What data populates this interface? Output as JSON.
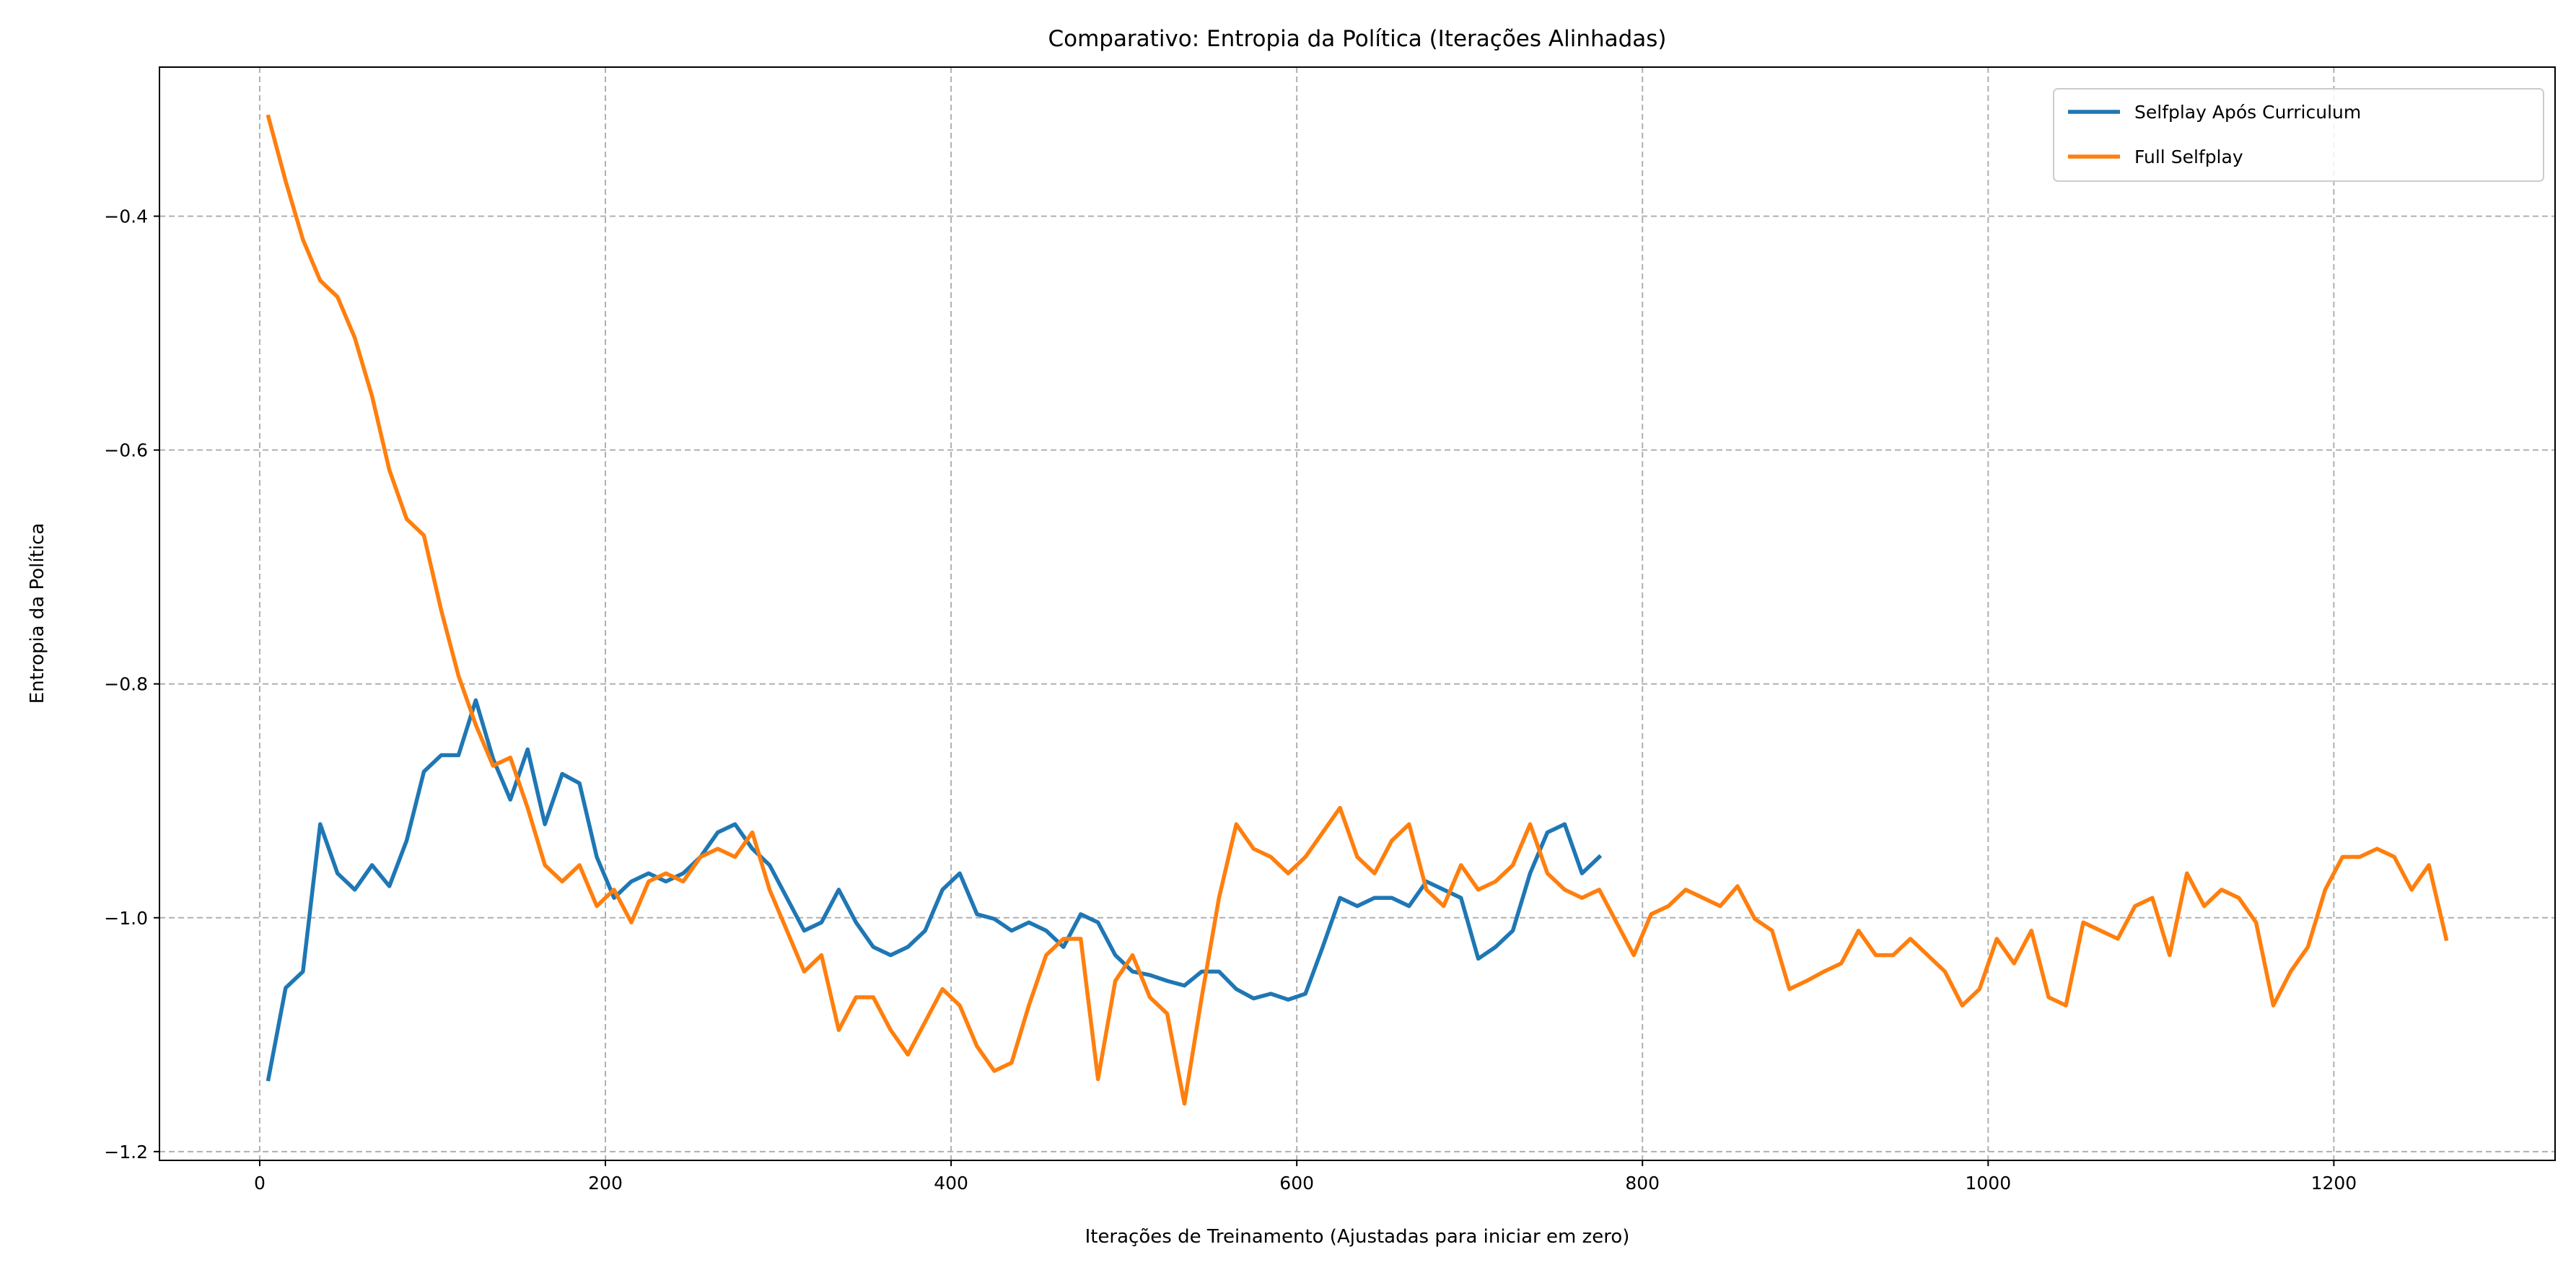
{
  "chart_data": {
    "type": "line",
    "title": "Comparativo: Entropia da Política (Iterações Alinhadas)",
    "x_label": "Iterações de Treinamento (Ajustadas para iniciar em zero)",
    "y_label": "Entropia da Política",
    "xlim": [
      -58,
      1328
    ],
    "ylim": [
      -1.2075,
      -0.2725
    ],
    "xticks": [
      0,
      200,
      400,
      600,
      800,
      1000,
      1200
    ],
    "yticks": [
      {
        "value": -1.2,
        "label": "−1.2"
      },
      {
        "value": -1.0,
        "label": "−1.0"
      },
      {
        "value": -0.8,
        "label": "−0.8"
      },
      {
        "value": -0.6,
        "label": "−0.6"
      },
      {
        "value": -0.4,
        "label": "−0.4"
      }
    ],
    "grid": true,
    "legend": "upper right",
    "x": [
      5,
      15,
      25,
      35,
      45,
      55,
      65,
      75,
      85,
      95,
      105,
      115,
      125,
      135,
      145,
      155,
      165,
      175,
      185,
      195,
      205,
      215,
      225,
      235,
      245,
      255,
      265,
      275,
      285,
      295,
      305,
      315,
      325,
      335,
      345,
      355,
      365,
      375,
      385,
      395,
      405,
      415,
      425,
      435,
      445,
      455,
      465,
      475,
      485,
      495,
      505,
      515,
      525,
      535,
      545,
      555,
      565,
      575,
      585,
      595,
      605,
      615,
      625,
      635,
      645,
      655,
      665,
      675,
      685,
      695,
      705,
      715,
      725,
      735,
      745,
      755,
      765,
      775,
      785,
      795,
      805,
      815,
      825,
      835,
      845,
      855,
      865,
      875,
      885,
      895,
      905,
      915,
      925,
      935,
      945,
      955,
      965,
      975,
      985,
      995,
      1005,
      1015,
      1025,
      1035,
      1045,
      1055,
      1065,
      1075,
      1085,
      1095,
      1105,
      1115,
      1125,
      1135,
      1145,
      1155,
      1165,
      1175,
      1185,
      1195,
      1205,
      1215,
      1225,
      1235,
      1245,
      1255,
      1265
    ],
    "series": [
      {
        "name": "Selfplay Após Curriculum",
        "color": "#1f77b4",
        "values": [
          -1.138,
          -1.06,
          -1.046,
          -0.92,
          -0.962,
          -0.976,
          -0.955,
          -0.973,
          -0.934,
          -0.875,
          -0.861,
          -0.861,
          -0.814,
          -0.864,
          -0.899,
          -0.856,
          -0.92,
          -0.877,
          -0.885,
          -0.948,
          -0.983,
          -0.969,
          -0.962,
          -0.969,
          -0.962,
          -0.948,
          -0.927,
          -0.92,
          -0.941,
          -0.955,
          -0.983,
          -1.011,
          -1.004,
          -0.976,
          -1.004,
          -1.025,
          -1.032,
          -1.025,
          -1.011,
          -0.976,
          -0.962,
          -0.997,
          -1.001,
          -1.011,
          -1.004,
          -1.011,
          -1.025,
          -0.997,
          -1.004,
          -1.032,
          -1.046,
          -1.049,
          -1.054,
          -1.058,
          -1.046,
          -1.046,
          -1.061,
          -1.069,
          -1.065,
          -1.07,
          -1.065,
          -1.025,
          -0.983,
          -0.99,
          -0.983,
          -0.983,
          -0.99,
          -0.969,
          -0.976,
          -0.983,
          -1.035,
          -1.025,
          -1.011,
          -0.962,
          -0.927,
          -0.92,
          -0.962,
          -0.948,
          null,
          null,
          null,
          null,
          null,
          null,
          null,
          null,
          null,
          null,
          null,
          null,
          null,
          null,
          null,
          null,
          null,
          null,
          null,
          null,
          null,
          null,
          null,
          null,
          null,
          null,
          null,
          null,
          null,
          null,
          null,
          null,
          null,
          null,
          null,
          null,
          null,
          null,
          null,
          null,
          null,
          null,
          null,
          null,
          null,
          null,
          null,
          null,
          null
        ]
      },
      {
        "name": "Full Selfplay",
        "color": "#ff7f0e",
        "values": [
          -0.315,
          -0.37,
          -0.42,
          -0.455,
          -0.469,
          -0.504,
          -0.554,
          -0.617,
          -0.659,
          -0.673,
          -0.737,
          -0.793,
          -0.835,
          -0.87,
          -0.863,
          -0.906,
          -0.955,
          -0.969,
          -0.955,
          -0.99,
          -0.976,
          -1.004,
          -0.969,
          -0.962,
          -0.969,
          -0.948,
          -0.941,
          -0.948,
          -0.927,
          -0.976,
          -1.011,
          -1.046,
          -1.032,
          -1.096,
          -1.068,
          -1.068,
          -1.096,
          -1.117,
          -1.089,
          -1.061,
          -1.075,
          -1.11,
          -1.131,
          -1.124,
          -1.075,
          -1.032,
          -1.018,
          -1.018,
          -1.138,
          -1.054,
          -1.032,
          -1.068,
          -1.082,
          -1.159,
          -1.068,
          -0.983,
          -0.92,
          -0.941,
          -0.948,
          -0.962,
          -0.948,
          -0.927,
          -0.906,
          -0.948,
          -0.962,
          -0.934,
          -0.92,
          -0.976,
          -0.99,
          -0.955,
          -0.976,
          -0.969,
          -0.955,
          -0.92,
          -0.962,
          -0.976,
          -0.983,
          -0.976,
          -1.004,
          -1.032,
          -0.997,
          -0.99,
          -0.976,
          -0.983,
          -0.99,
          -0.973,
          -1.001,
          -1.011,
          -1.061,
          -1.054,
          -1.046,
          -1.039,
          -1.011,
          -1.032,
          -1.032,
          -1.018,
          -1.032,
          -1.046,
          -1.075,
          -1.061,
          -1.018,
          -1.039,
          -1.011,
          -1.068,
          -1.075,
          -1.004,
          -1.011,
          -1.018,
          -0.99,
          -0.983,
          -1.032,
          -0.962,
          -0.99,
          -0.976,
          -0.983,
          -1.004,
          -1.075,
          -1.046,
          -1.025,
          -0.976,
          -0.948,
          -0.948,
          -0.941,
          -0.948,
          -0.976,
          -0.955,
          -1.018
        ]
      }
    ]
  }
}
